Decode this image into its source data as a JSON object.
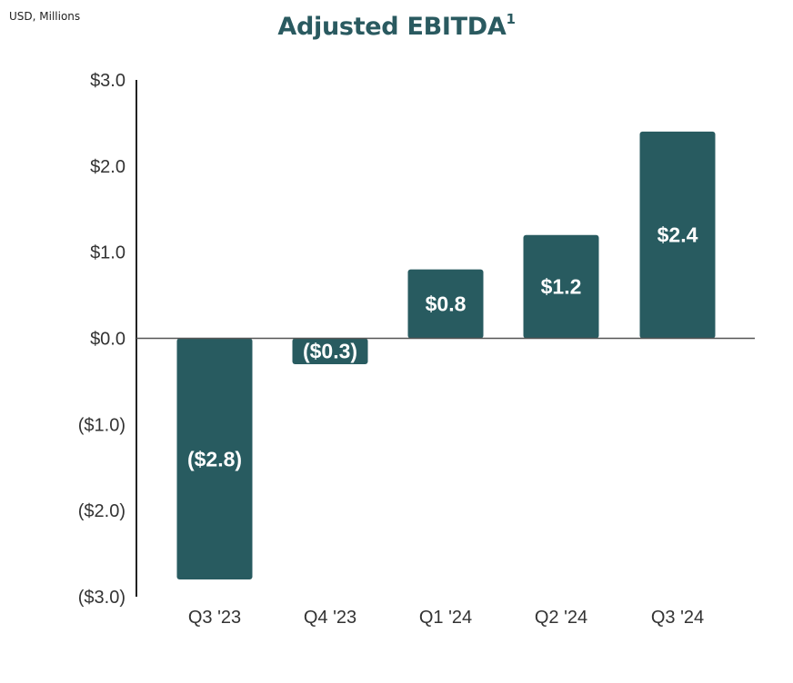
{
  "header": {
    "units_note": "USD, Millions",
    "title": "Adjusted EBITDA",
    "title_footnote": "1"
  },
  "chart_data": {
    "type": "bar",
    "title": "Adjusted EBITDA",
    "units": "USD, Millions",
    "categories": [
      "Q3 '23",
      "Q4 '23",
      "Q1 '24",
      "Q2 '24",
      "Q3 '24"
    ],
    "values": [
      -2.8,
      -0.3,
      0.8,
      1.2,
      2.4
    ],
    "data_labels": [
      "($2.8)",
      "($0.3)",
      "$0.8",
      "$1.2",
      "$2.4"
    ],
    "ylim": [
      -3.0,
      3.0
    ],
    "y_ticks": [
      3.0,
      2.0,
      1.0,
      0.0,
      -1.0,
      -2.0,
      -3.0
    ],
    "y_tick_labels": [
      "$3.0",
      "$2.0",
      "$1.0",
      "$0.0",
      "($1.0)",
      "($2.0)",
      "($3.0)"
    ],
    "xlabel": "",
    "ylabel": "",
    "grid": false,
    "legend": "none",
    "bar_color": "#285b60",
    "label_color": "#ffffff"
  }
}
